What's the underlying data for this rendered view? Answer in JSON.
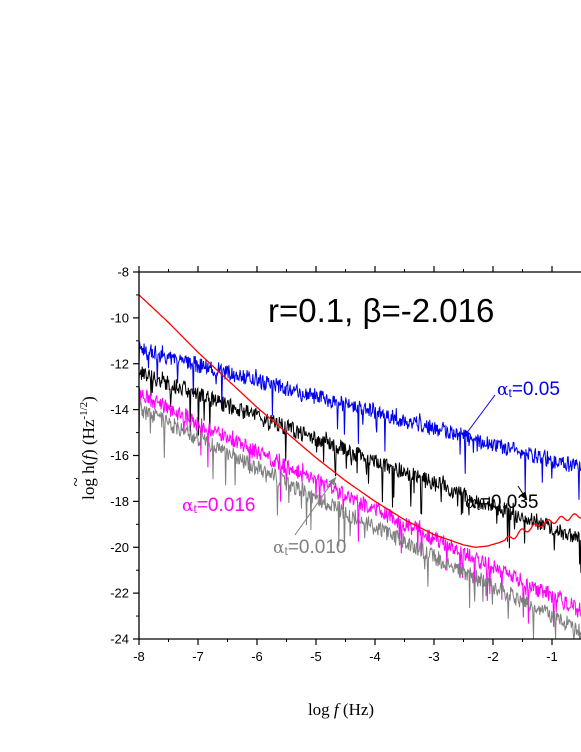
{
  "chart_data": {
    "type": "line",
    "title": "r=0.1,  β=-2.016",
    "xlabel": {
      "prefix": "log ",
      "var": "f",
      "suffix": " (Hz)"
    },
    "ylabel": {
      "prefix": "log ",
      "tilde": "~",
      "h": "h(",
      "var": "f",
      "mid": ") (Hz",
      "sup": "-1/2",
      "end": ")"
    },
    "xlim": [
      -8,
      -0.5
    ],
    "ylim": [
      -24,
      -8
    ],
    "xticks": [
      -8,
      -7,
      -6,
      -5,
      -4,
      -3,
      -2,
      -1
    ],
    "yticks": [
      -24,
      -22,
      -20,
      -18,
      -16,
      -14,
      -12,
      -10,
      -8
    ],
    "grid": false,
    "legend": "none",
    "series": [
      {
        "color": "#0000ee",
        "x": [
          -8,
          -0.5
        ],
        "y": [
          -11.0,
          -16.2
        ]
      },
      {
        "color": "#000000",
        "x": [
          -8,
          -0.5
        ],
        "y": [
          -12.0,
          -19.3
        ]
      },
      {
        "color": "#ff00ff",
        "x": [
          -8,
          -0.5
        ],
        "y": [
          -13.0,
          -22.4
        ]
      },
      {
        "color": "#808080",
        "x": [
          -8,
          -0.5
        ],
        "y": [
          -13.6,
          -23.3
        ]
      },
      {
        "color": "#ff0000",
        "x": [
          -8,
          -7.5,
          -7,
          -6.5,
          -6,
          -5.5,
          -5,
          -4.5,
          -4,
          -3.5,
          -3,
          -2.5,
          -2.3,
          -2.1,
          -1.9,
          -1.7,
          -1.5,
          -1.2,
          -0.9,
          -0.5
        ],
        "y": [
          -9.0,
          -10.2,
          -11.5,
          -12.7,
          -13.9,
          -15.0,
          -16.1,
          -17.1,
          -18.0,
          -18.8,
          -19.45,
          -19.9,
          -20.0,
          -19.95,
          -19.8,
          -19.6,
          -19.3,
          -19.0,
          -18.8,
          -18.6
        ]
      }
    ],
    "annotations": [
      {
        "alpha": "α",
        "sub": "t",
        "value": "=0.05",
        "color": "#0000ee",
        "arrow": true
      },
      {
        "alpha": "α",
        "sub": "t",
        "value": "=0.035",
        "color": "#000000",
        "arrow": true
      },
      {
        "alpha": "α",
        "sub": "t",
        "value": "=0.016",
        "color": "#ff00ff",
        "arrow": false
      },
      {
        "alpha": "α",
        "sub": "t",
        "value": "=0.010",
        "color": "#808080",
        "arrow": true
      }
    ]
  }
}
